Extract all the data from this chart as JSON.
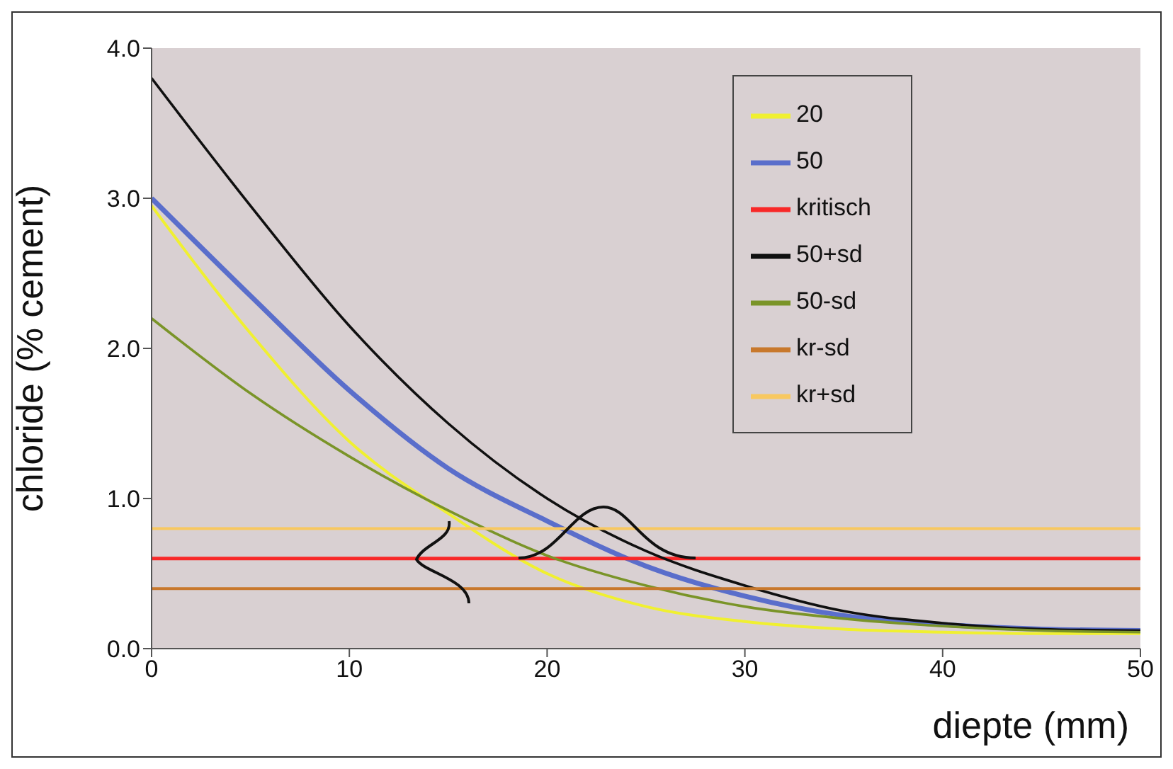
{
  "chart_data": {
    "type": "line",
    "xlabel": "diepte (mm)",
    "ylabel": "chloride (% cement)",
    "x": [
      0,
      5,
      10,
      15,
      20,
      25,
      30,
      35,
      40,
      45,
      50
    ],
    "series": [
      {
        "name": "20",
        "color": "#f0f030",
        "values": [
          2.95,
          2.1,
          1.38,
          0.9,
          0.5,
          0.28,
          0.18,
          0.13,
          0.11,
          0.1,
          0.1
        ]
      },
      {
        "name": "50",
        "color": "#5a6ecb",
        "values": [
          3.0,
          2.35,
          1.72,
          1.2,
          0.85,
          0.55,
          0.35,
          0.22,
          0.16,
          0.13,
          0.12
        ]
      },
      {
        "name": "kritisch",
        "color": "#f82828",
        "values": [
          0.6,
          0.6,
          0.6,
          0.6,
          0.6,
          0.6,
          0.6,
          0.6,
          0.6,
          0.6,
          0.6
        ]
      },
      {
        "name": "50+sd",
        "color": "#101010",
        "values": [
          3.8,
          2.95,
          2.15,
          1.5,
          1.0,
          0.65,
          0.42,
          0.25,
          0.17,
          0.13,
          0.12
        ]
      },
      {
        "name": "50-sd",
        "color": "#7a9428",
        "values": [
          2.2,
          1.7,
          1.28,
          0.92,
          0.62,
          0.42,
          0.28,
          0.2,
          0.15,
          0.12,
          0.11
        ]
      },
      {
        "name": "kr-sd",
        "color": "#c8782c",
        "values": [
          0.4,
          0.4,
          0.4,
          0.4,
          0.4,
          0.4,
          0.4,
          0.4,
          0.4,
          0.4,
          0.4
        ]
      },
      {
        "name": "kr+sd",
        "color": "#f8c860",
        "values": [
          0.8,
          0.8,
          0.8,
          0.8,
          0.8,
          0.8,
          0.8,
          0.8,
          0.8,
          0.8,
          0.8
        ]
      }
    ],
    "xlim": [
      0,
      50
    ],
    "xticks": [
      0,
      10,
      20,
      30,
      40,
      50
    ],
    "ylim": [
      0,
      4
    ],
    "yticks": [
      {
        "value": 0,
        "label": "0.0"
      },
      {
        "value": 1,
        "label": "1.0"
      },
      {
        "value": 2,
        "label": "2.0"
      },
      {
        "value": 3,
        "label": "3.0"
      },
      {
        "value": 4,
        "label": "4.0"
      }
    ],
    "grid": false,
    "legend": "top right",
    "marker": "none",
    "line_style": "solid"
  }
}
